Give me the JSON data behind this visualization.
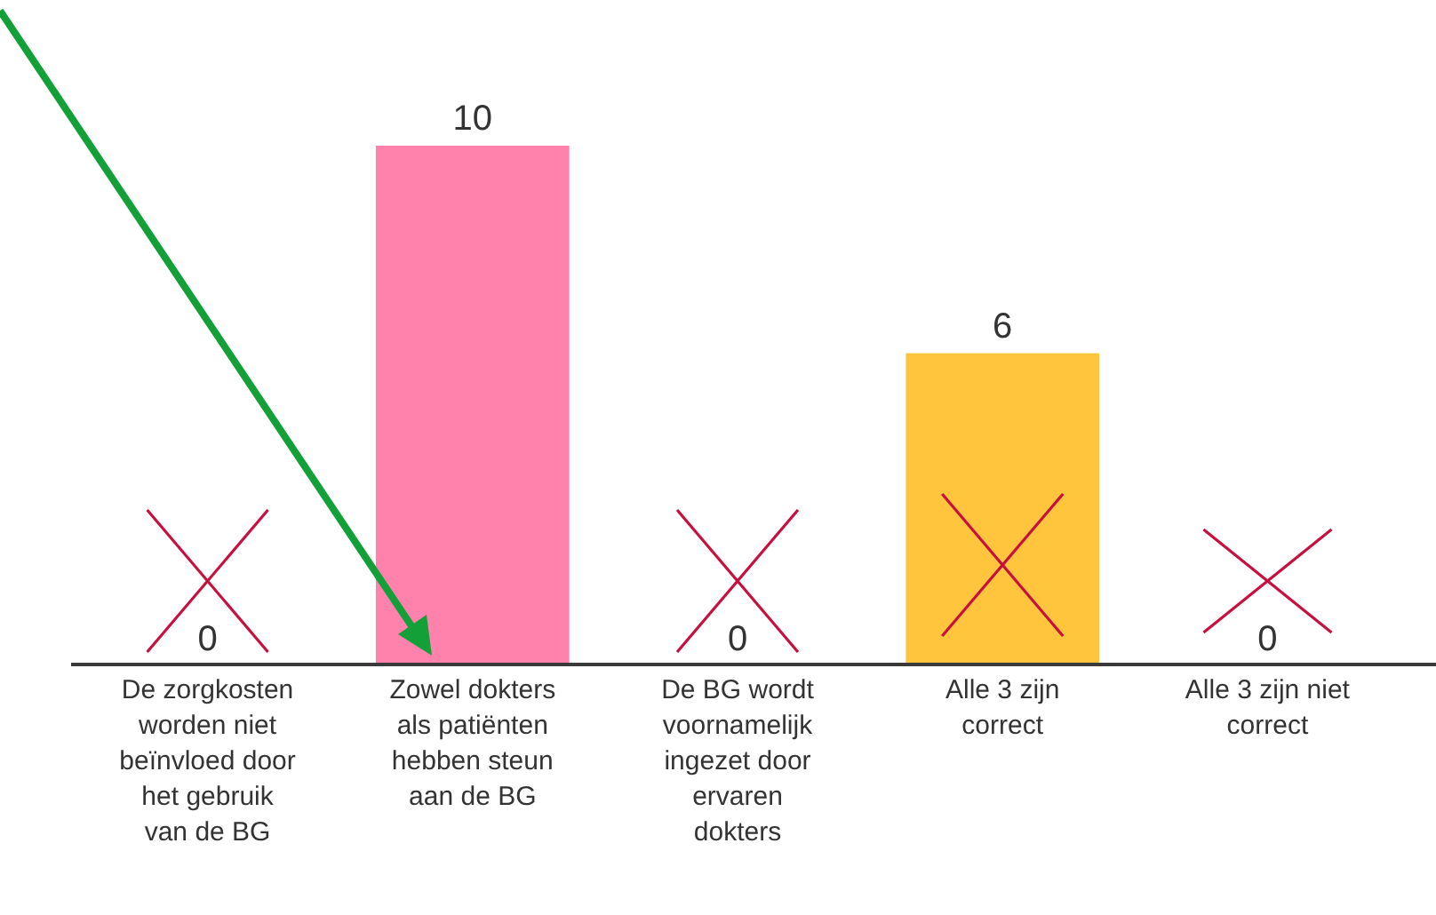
{
  "chart_data": {
    "type": "bar",
    "categories": [
      "De zorgkosten worden niet beïnvloed door het gebruik van de BG",
      "Zowel dokters als patiënten hebben steun aan de BG",
      "De BG wordt voornamelijk ingezet door ervaren dokters",
      "Alle 3 zijn correct",
      "Alle 3 zijn niet correct"
    ],
    "values": [
      0,
      10,
      0,
      6,
      0
    ],
    "colors": [
      "#ff82ad",
      "#ff82ad",
      "#ff82ad",
      "#ffc53d",
      "#ffc53d"
    ],
    "data_labels": true
  }
}
